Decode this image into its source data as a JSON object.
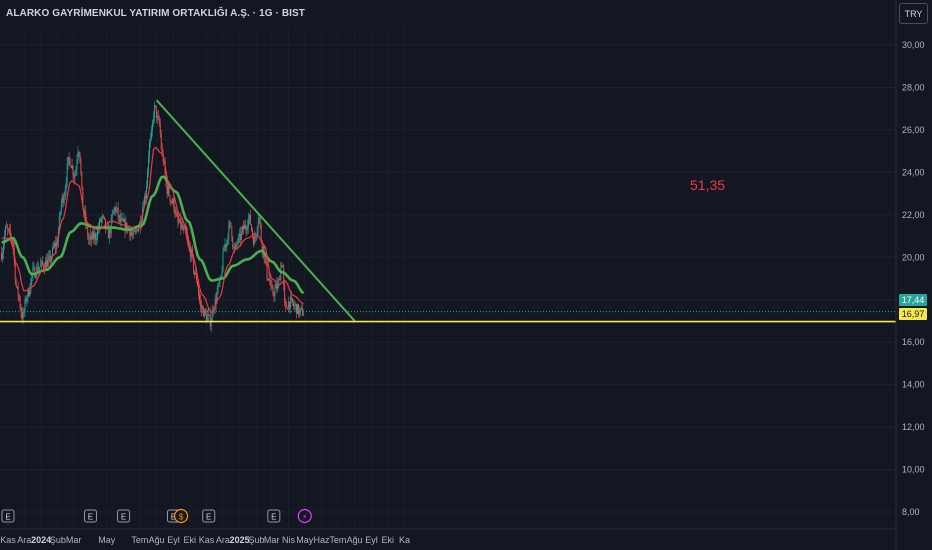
{
  "header": {
    "title": "ALARKO GAYRİMENKUL YATIRIM ORTAKLIĞI A.Ş. · 1G · BIST",
    "currency_button": "TRY"
  },
  "price_tags": {
    "last_price": "17,44",
    "support_level": "16,97"
  },
  "annotation": "51,35",
  "colors": {
    "background": "#131722",
    "up_candle": "#26a69a",
    "down_candle": "#ef5350",
    "fast_ma": "#f23645",
    "slow_ma": "#4caf50",
    "trendline": "#4caf50",
    "support_line": "#f5e94a"
  },
  "chart_data": {
    "type": "line",
    "subtype": "candlestick",
    "interval": "1G",
    "y_axis": {
      "ylim": [
        7.2,
        30.8
      ],
      "ticks": [
        "30,00",
        "28,00",
        "26,00",
        "24,00",
        "22,00",
        "20,00",
        "18,00",
        "16,00",
        "14,00",
        "12,00",
        "10,00",
        "8,00"
      ],
      "tick_values": [
        30,
        28,
        26,
        24,
        22,
        20,
        18,
        16,
        14,
        12,
        10,
        8
      ]
    },
    "x_axis": {
      "tick_labels": [
        "Kas",
        "Ara",
        "2024",
        "Şub",
        "Mar",
        "May",
        "Tem",
        "Ağu",
        "Eyl",
        "Eki",
        "Kas",
        "Ara",
        "2025",
        "Şub",
        "Mar",
        "Nis",
        "May",
        "Haz",
        "Tem",
        "Ağu",
        "Eyl",
        "Eki",
        "Ka"
      ],
      "bold_labels": [
        "2024",
        "2025"
      ],
      "tick_dates": [
        "2023-11-01",
        "2023-12-01",
        "2024-01-01",
        "2024-02-01",
        "2024-03-01",
        "2024-05-01",
        "2024-07-01",
        "2024-08-01",
        "2024-09-01",
        "2024-10-01",
        "2024-11-01",
        "2024-12-01",
        "2025-01-01",
        "2025-02-01",
        "2025-03-01",
        "2025-04-01",
        "2025-05-01",
        "2025-06-01",
        "2025-07-01",
        "2025-08-01",
        "2025-09-01",
        "2025-10-01",
        "2025-11-01"
      ]
    },
    "price_anchors": [
      [
        "2023-10-20",
        20.2
      ],
      [
        "2023-10-28",
        21.3
      ],
      [
        "2023-11-08",
        20.9
      ],
      [
        "2023-11-18",
        18.4
      ],
      [
        "2023-11-28",
        17.2
      ],
      [
        "2023-12-06",
        18.2
      ],
      [
        "2023-12-18",
        19.3
      ],
      [
        "2024-01-02",
        19.6
      ],
      [
        "2024-01-15",
        19.8
      ],
      [
        "2024-01-28",
        20.6
      ],
      [
        "2024-02-10",
        22.8
      ],
      [
        "2024-02-22",
        24.6
      ],
      [
        "2024-03-03",
        23.9
      ],
      [
        "2024-03-10",
        25.2
      ],
      [
        "2024-03-20",
        22.0
      ],
      [
        "2024-03-30",
        20.8
      ],
      [
        "2024-04-10",
        21.0
      ],
      [
        "2024-04-22",
        21.8
      ],
      [
        "2024-05-04",
        21.1
      ],
      [
        "2024-05-16",
        22.3
      ],
      [
        "2024-05-28",
        21.6
      ],
      [
        "2024-06-08",
        21.4
      ],
      [
        "2024-06-20",
        21.0
      ],
      [
        "2024-07-01",
        21.6
      ],
      [
        "2024-07-10",
        22.8
      ],
      [
        "2024-07-20",
        25.4
      ],
      [
        "2024-07-28",
        27.0
      ],
      [
        "2024-08-05",
        26.3
      ],
      [
        "2024-08-12",
        24.7
      ],
      [
        "2024-08-20",
        23.2
      ],
      [
        "2024-08-30",
        22.6
      ],
      [
        "2024-09-10",
        21.6
      ],
      [
        "2024-09-22",
        21.2
      ],
      [
        "2024-10-02",
        20.3
      ],
      [
        "2024-10-12",
        19.1
      ],
      [
        "2024-10-22",
        17.6
      ],
      [
        "2024-11-01",
        17.2
      ],
      [
        "2024-11-08",
        17.0
      ],
      [
        "2024-11-15",
        17.8
      ],
      [
        "2024-11-25",
        18.7
      ],
      [
        "2024-12-05",
        20.6
      ],
      [
        "2024-12-15",
        21.5
      ],
      [
        "2024-12-22",
        20.3
      ],
      [
        "2024-12-30",
        20.8
      ],
      [
        "2025-01-10",
        21.4
      ],
      [
        "2025-01-18",
        21.8
      ],
      [
        "2025-01-28",
        20.8
      ],
      [
        "2025-02-05",
        21.9
      ],
      [
        "2025-02-12",
        20.5
      ],
      [
        "2025-02-22",
        19.1
      ],
      [
        "2025-03-02",
        18.3
      ],
      [
        "2025-03-12",
        18.6
      ],
      [
        "2025-03-20",
        19.8
      ],
      [
        "2025-03-26",
        17.6
      ],
      [
        "2025-04-03",
        17.9
      ],
      [
        "2025-04-12",
        17.7
      ],
      [
        "2025-04-22",
        17.4
      ],
      [
        "2025-04-30",
        17.44
      ]
    ],
    "fast_ma": [
      [
        "2023-10-20",
        20.9
      ],
      [
        "2023-11-05",
        20.9
      ],
      [
        "2023-11-18",
        19.6
      ],
      [
        "2023-12-01",
        18.4
      ],
      [
        "2023-12-15",
        18.6
      ],
      [
        "2024-01-05",
        19.4
      ],
      [
        "2024-01-25",
        20.1
      ],
      [
        "2024-02-10",
        21.8
      ],
      [
        "2024-02-25",
        23.6
      ],
      [
        "2024-03-10",
        23.4
      ],
      [
        "2024-03-25",
        21.6
      ],
      [
        "2024-04-15",
        21.3
      ],
      [
        "2024-05-10",
        21.7
      ],
      [
        "2024-06-05",
        21.5
      ],
      [
        "2024-06-28",
        21.3
      ],
      [
        "2024-07-15",
        22.8
      ],
      [
        "2024-07-28",
        25.2
      ],
      [
        "2024-08-10",
        24.9
      ],
      [
        "2024-08-25",
        23.4
      ],
      [
        "2024-09-15",
        21.9
      ],
      [
        "2024-10-05",
        20.1
      ],
      [
        "2024-10-25",
        18.2
      ],
      [
        "2024-11-10",
        17.4
      ],
      [
        "2024-11-25",
        18.1
      ],
      [
        "2024-12-10",
        19.6
      ],
      [
        "2024-12-25",
        20.4
      ],
      [
        "2025-01-15",
        20.9
      ],
      [
        "2025-02-01",
        21.1
      ],
      [
        "2025-02-15",
        20.6
      ],
      [
        "2025-03-01",
        19.0
      ],
      [
        "2025-03-15",
        18.7
      ],
      [
        "2025-03-25",
        18.9
      ],
      [
        "2025-04-10",
        18.2
      ],
      [
        "2025-04-30",
        17.8
      ]
    ],
    "slow_ma": [
      [
        "2023-10-20",
        20.7
      ],
      [
        "2023-11-10",
        20.9
      ],
      [
        "2023-11-28",
        20.0
      ],
      [
        "2023-12-15",
        19.2
      ],
      [
        "2024-01-10",
        19.4
      ],
      [
        "2024-02-05",
        20.0
      ],
      [
        "2024-02-25",
        21.2
      ],
      [
        "2024-03-15",
        21.6
      ],
      [
        "2024-04-10",
        21.4
      ],
      [
        "2024-05-10",
        21.4
      ],
      [
        "2024-06-10",
        21.3
      ],
      [
        "2024-07-05",
        21.5
      ],
      [
        "2024-07-25",
        22.9
      ],
      [
        "2024-08-12",
        23.8
      ],
      [
        "2024-09-05",
        23.1
      ],
      [
        "2024-09-28",
        21.7
      ],
      [
        "2024-10-20",
        19.9
      ],
      [
        "2024-11-10",
        18.9
      ],
      [
        "2024-12-01",
        19.0
      ],
      [
        "2024-12-20",
        19.6
      ],
      [
        "2025-01-15",
        19.9
      ],
      [
        "2025-02-10",
        20.3
      ],
      [
        "2025-03-01",
        19.8
      ],
      [
        "2025-03-20",
        19.3
      ],
      [
        "2025-04-10",
        18.9
      ],
      [
        "2025-04-30",
        18.3
      ]
    ],
    "trendline": {
      "start": [
        "2024-08-01",
        27.4
      ],
      "end": [
        "2025-08-01",
        17.0
      ]
    },
    "support_level": 16.97,
    "last_price": 17.44,
    "event_markers": [
      {
        "date": "2023-11-01",
        "label": "E",
        "kind": "earnings"
      },
      {
        "date": "2024-04-01",
        "label": "E",
        "kind": "earnings"
      },
      {
        "date": "2024-06-01",
        "label": "E",
        "kind": "earnings"
      },
      {
        "date": "2024-09-01",
        "label": "E",
        "kind": "earnings"
      },
      {
        "date": "2024-09-15",
        "label": "$",
        "kind": "dividend"
      },
      {
        "date": "2024-11-05",
        "label": "E",
        "kind": "earnings"
      },
      {
        "date": "2025-03-05",
        "label": "E",
        "kind": "earnings"
      },
      {
        "date": "2025-05-01",
        "label": "⚡",
        "kind": "split"
      }
    ],
    "grid": true
  }
}
